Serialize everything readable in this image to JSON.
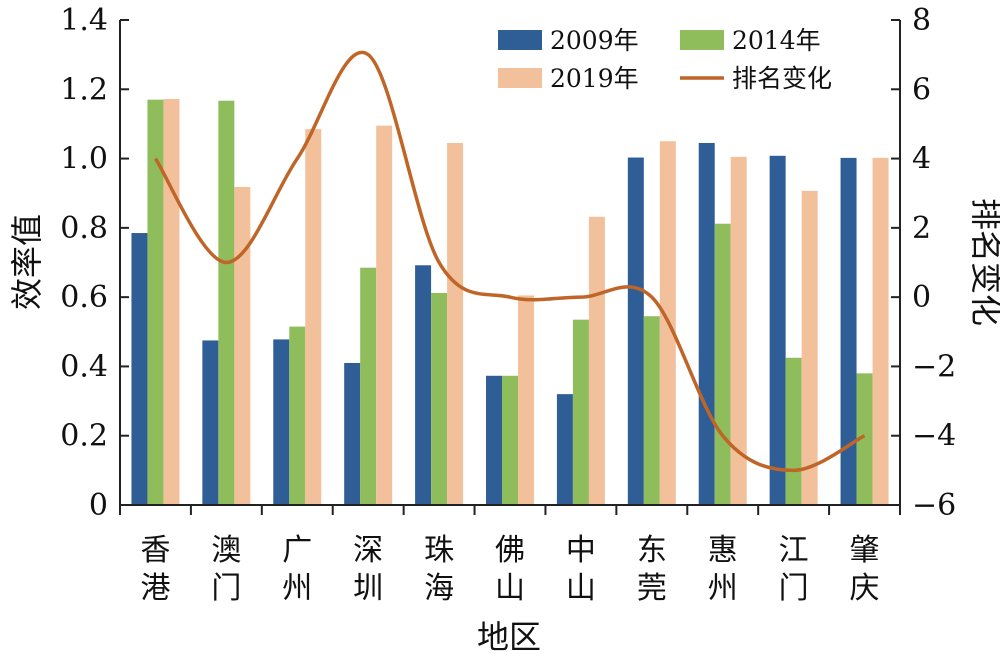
{
  "chart_data": {
    "type": "bar",
    "categories": [
      [
        "香",
        "港"
      ],
      [
        "澳",
        "门"
      ],
      [
        "广",
        "州"
      ],
      [
        "深",
        "圳"
      ],
      [
        "珠",
        "海"
      ],
      [
        "佛",
        "山"
      ],
      [
        "中",
        "山"
      ],
      [
        "东",
        "莞"
      ],
      [
        "惠",
        "州"
      ],
      [
        "江",
        "门"
      ],
      [
        "肇",
        "庆"
      ]
    ],
    "xlabel": "地区",
    "ylabel": "效率值",
    "y2label": "排名变化",
    "ylim": [
      0,
      1.4
    ],
    "y2lim": [
      -6,
      8
    ],
    "yticks": [
      "0",
      "0.2",
      "0.4",
      "0.6",
      "0.8",
      "1.0",
      "1.2",
      "1.4"
    ],
    "y2ticks": [
      "−6",
      "−4",
      "−2",
      "0",
      "2",
      "4",
      "6",
      "8"
    ],
    "series": [
      {
        "name": "2009年",
        "kind": "bar",
        "color": "#2e5e95",
        "values": [
          0.785,
          0.475,
          0.478,
          0.41,
          0.692,
          0.373,
          0.32,
          1.003,
          1.045,
          1.008,
          1.002
        ]
      },
      {
        "name": "2014年",
        "kind": "bar",
        "color": "#8fbd5c",
        "values": [
          1.17,
          1.167,
          0.515,
          0.685,
          0.612,
          0.373,
          0.535,
          0.545,
          0.812,
          0.425,
          0.38
        ]
      },
      {
        "name": "2019年",
        "kind": "bar",
        "color": "#f3c09c",
        "values": [
          1.172,
          0.918,
          1.085,
          1.095,
          1.045,
          0.605,
          0.832,
          1.05,
          1.005,
          0.907,
          1.002
        ]
      },
      {
        "name": "排名变化",
        "kind": "line",
        "axis": "right",
        "color": "#bf6528",
        "values": [
          4,
          1,
          4,
          7,
          1,
          0,
          0,
          0,
          -4,
          -5,
          -4
        ]
      }
    ],
    "legend": {
      "position": "top-right"
    }
  }
}
